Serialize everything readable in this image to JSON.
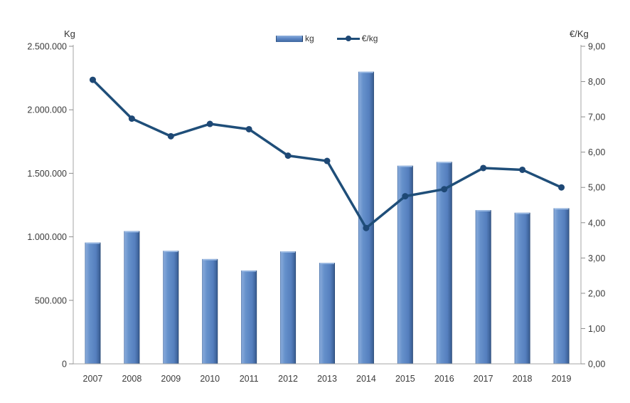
{
  "chart_data": {
    "type": "combo",
    "title": "",
    "categories": [
      "2007",
      "2008",
      "2009",
      "2010",
      "2011",
      "2012",
      "2013",
      "2014",
      "2015",
      "2016",
      "2017",
      "2018",
      "2019"
    ],
    "series": [
      {
        "name": "kg",
        "type": "bar",
        "axis": "left",
        "color": "#5b87c5",
        "values": [
          955000,
          1045000,
          890000,
          825000,
          735000,
          885000,
          795000,
          2300000,
          1560000,
          1590000,
          1210000,
          1190000,
          1225000
        ]
      },
      {
        "name": "€/kg",
        "type": "line",
        "axis": "right",
        "color": "#1f4e79",
        "values": [
          8.05,
          6.95,
          6.45,
          6.8,
          6.65,
          5.9,
          5.75,
          3.85,
          4.75,
          4.95,
          5.55,
          5.5,
          5.0
        ]
      }
    ],
    "left_axis": {
      "title": "Kg",
      "min": 0,
      "max": 2500000,
      "step": 500000,
      "tick_labels": [
        "0",
        "500.000",
        "1.000.000",
        "1.500.000",
        "2.000.000",
        "2.500.000"
      ]
    },
    "right_axis": {
      "title": "€/Kg",
      "min": 0,
      "max": 9,
      "step": 1,
      "tick_labels": [
        "0,00",
        "1,00",
        "2,00",
        "3,00",
        "4,00",
        "5,00",
        "6,00",
        "7,00",
        "8,00",
        "9,00"
      ]
    },
    "legend": {
      "position": "top-center",
      "items": [
        "kg",
        "€/kg"
      ]
    },
    "grid": false,
    "background": "#ffffff",
    "colors": {
      "bar_body": "#5b87c5",
      "bar_edge_dark": "#1d3c67",
      "line": "#1f4e79",
      "marker": "#1e4875",
      "axis_line": "#a6a6a6",
      "tick": "#8c8c8c",
      "label_text": "#3b3b3b"
    }
  }
}
